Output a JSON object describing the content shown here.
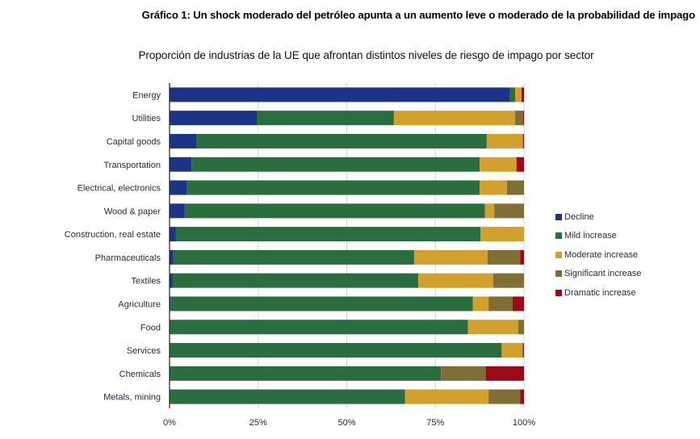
{
  "header": {
    "title": "Gráfico 1: Un shock moderado del petróleo apunta a un aumento leve o moderado de la probabilidad de impago",
    "subtitle": "Proporción de industrias de la UE que afrontan distintos niveles de riesgo de impago por sector"
  },
  "chart_data": {
    "type": "bar",
    "orientation": "horizontal",
    "stacked": true,
    "title": "Gráfico 1: Un shock moderado del petróleo apunta a un aumento leve o moderado de la probabilidad de impago",
    "subtitle": "Proporción de industrias de la UE que afrontan distintos niveles de riesgo de impago por sector",
    "xlabel": "",
    "ylabel": "",
    "xlim": [
      0,
      100
    ],
    "x_ticks": [
      "0%",
      "25%",
      "50%",
      "75%",
      "100%"
    ],
    "grid": true,
    "legend_position": "right",
    "categories": [
      "Energy",
      "Utilities",
      "Capital goods",
      "Transportation",
      "Electrical, electronics",
      "Wood & paper",
      "Construction, real estate",
      "Pharmaceuticals",
      "Textiles",
      "Agriculture",
      "Food",
      "Services",
      "Chemicals",
      "Metals, mining"
    ],
    "series": [
      {
        "name": "Decline",
        "color": "#1b3486",
        "values": [
          96.0,
          24.6,
          7.7,
          6.2,
          4.8,
          4.3,
          1.8,
          1.1,
          0.9,
          0.3,
          0.1,
          0.1,
          0.0,
          0.0
        ]
      },
      {
        "name": "Mild increase",
        "color": "#2a6e40",
        "values": [
          1.5,
          38.7,
          81.8,
          81.3,
          82.7,
          84.7,
          85.9,
          67.9,
          69.3,
          85.3,
          84.1,
          93.6,
          76.6,
          66.4
        ]
      },
      {
        "name": "Moderate increase",
        "color": "#d1a02d",
        "values": [
          1.8,
          34.2,
          10.2,
          10.4,
          7.7,
          2.6,
          12.3,
          20.7,
          21.1,
          4.4,
          14.2,
          5.8,
          0.0,
          23.6
        ]
      },
      {
        "name": "Significant increase",
        "color": "#806f35",
        "values": [
          0.0,
          2.2,
          0.0,
          0.0,
          4.8,
          8.4,
          0.0,
          9.2,
          8.7,
          6.8,
          1.6,
          0.3,
          12.6,
          8.9
        ]
      },
      {
        "name": "Dramatic increase",
        "color": "#9b0a16",
        "values": [
          0.7,
          0.3,
          0.3,
          2.1,
          0.0,
          0.0,
          0.0,
          1.1,
          0.0,
          3.2,
          0.0,
          0.2,
          10.8,
          1.1
        ]
      }
    ]
  }
}
